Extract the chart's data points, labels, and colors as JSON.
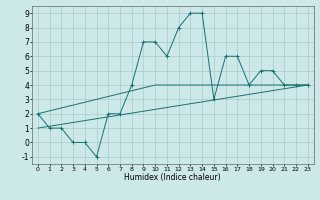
{
  "title": "",
  "xlabel": "Humidex (Indice chaleur)",
  "background_color": "#cce8e8",
  "grid_color": "#aacccc",
  "line_color": "#1a7070",
  "xlim": [
    -0.5,
    23.5
  ],
  "ylim": [
    -1.5,
    9.5
  ],
  "xticks": [
    0,
    1,
    2,
    3,
    4,
    5,
    6,
    7,
    8,
    9,
    10,
    11,
    12,
    13,
    14,
    15,
    16,
    17,
    18,
    19,
    20,
    21,
    22,
    23
  ],
  "yticks": [
    -1,
    0,
    1,
    2,
    3,
    4,
    5,
    6,
    7,
    8,
    9
  ],
  "curve1_x": [
    0,
    1,
    2,
    3,
    4,
    5,
    6,
    7,
    8,
    9,
    10,
    11,
    12,
    13,
    14,
    15,
    16,
    17,
    18,
    19,
    20,
    21,
    22,
    23
  ],
  "curve1_y": [
    2,
    1,
    1,
    0,
    0,
    -1,
    2,
    2,
    4,
    7,
    7,
    6,
    8,
    9,
    9,
    3,
    6,
    6,
    4,
    5,
    5,
    4,
    4,
    4
  ],
  "curve2_x": [
    0,
    10,
    23
  ],
  "curve2_y": [
    2,
    4,
    4
  ],
  "curve3_x": [
    0,
    23
  ],
  "curve3_y": [
    1,
    4
  ],
  "marker": "+"
}
